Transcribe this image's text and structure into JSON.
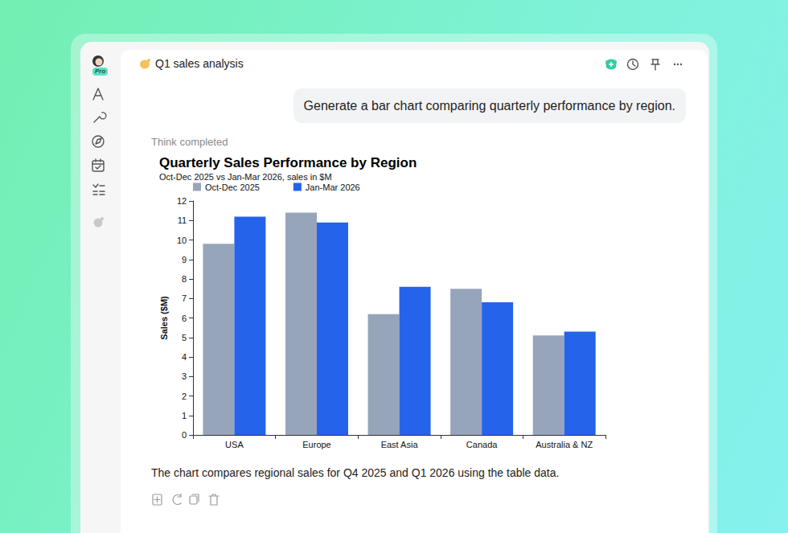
{
  "app": {
    "badge": "Pro",
    "conversation_title": "Q1 sales analysis",
    "user_message": "Generate a bar chart comparing quarterly performance by region.",
    "status": "Think completed",
    "caption": "The chart compares regional sales for Q4 2025 and Q1 2026 using the table data."
  },
  "chart_data": {
    "type": "bar",
    "title": "Quarterly Sales Performance by Region",
    "subtitle": "Oct-Dec 2025 vs Jan-Mar 2026, sales in $M",
    "ylabel": "Sales ($M)",
    "categories": [
      "USA",
      "Europe",
      "East Asia",
      "Canada",
      "Australia & NZ"
    ],
    "series": [
      {
        "name": "Oct-Dec 2025",
        "color": "#97a5bb",
        "values": [
          9.8,
          11.4,
          6.2,
          7.5,
          5.1
        ]
      },
      {
        "name": "Jan-Mar 2026",
        "color": "#2563eb",
        "values": [
          11.2,
          10.9,
          7.6,
          6.8,
          5.3
        ]
      }
    ],
    "ylim": [
      0,
      12
    ],
    "yticks": [
      0,
      1,
      2,
      3,
      4,
      5,
      6,
      7,
      8,
      9,
      10,
      11,
      12
    ],
    "grid": false,
    "legend": "top-left"
  }
}
